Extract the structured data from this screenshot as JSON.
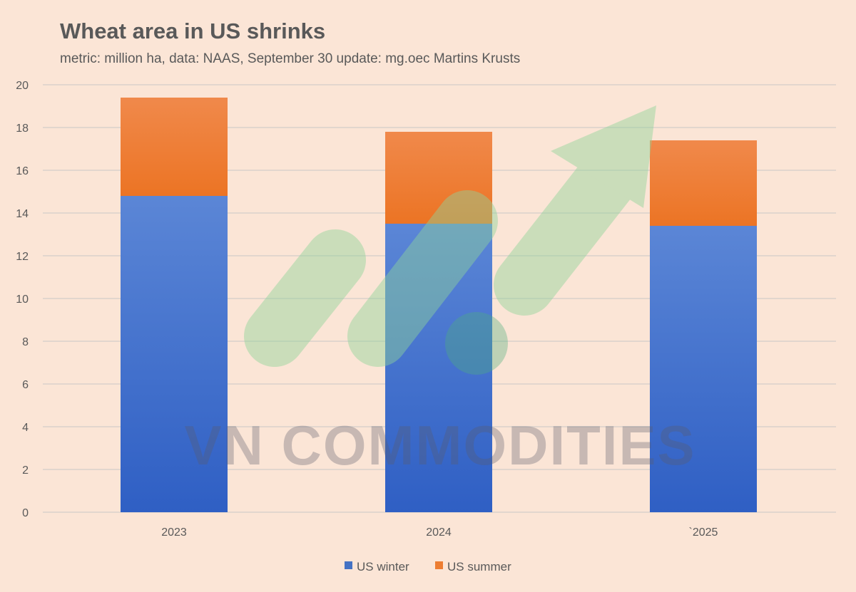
{
  "title": "Wheat area in US shrinks",
  "subtitle": "metric: million ha, data: NAAS, September 30 update: mg.oec Martins Krusts",
  "watermark": "VN COMMODITIES",
  "colors": {
    "background": "#fbe5d6",
    "grid": "#d9d2cc",
    "series_winter": "#4472c4",
    "series_summer": "#ed7d31",
    "watermark_green": "#8fd49a"
  },
  "chart_data": {
    "type": "bar",
    "stacked": true,
    "categories": [
      "2023",
      "2024",
      "`2025"
    ],
    "series": [
      {
        "name": "US winter",
        "values": [
          14.8,
          13.5,
          13.4
        ]
      },
      {
        "name": "US summer",
        "values": [
          4.6,
          4.3,
          4.0
        ]
      }
    ],
    "ylim": [
      0,
      20
    ],
    "yticks": [
      0,
      2,
      4,
      6,
      8,
      10,
      12,
      14,
      16,
      18,
      20
    ],
    "grid": true,
    "legend_position": "bottom"
  }
}
